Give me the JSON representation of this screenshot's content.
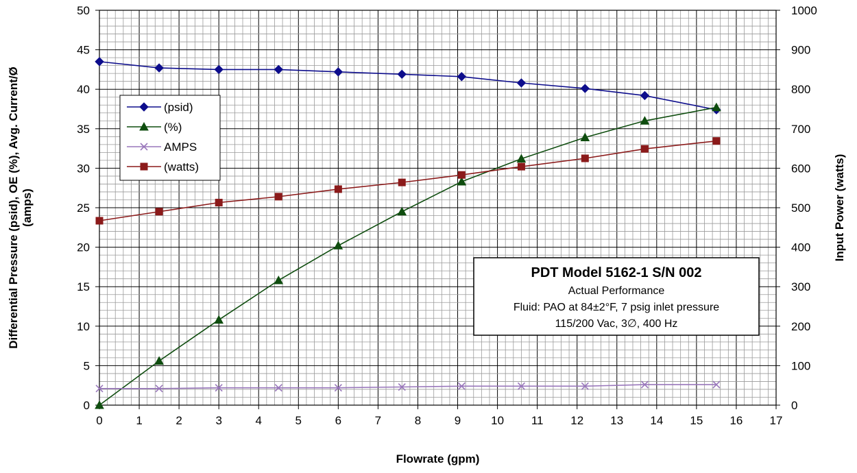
{
  "chart_data": {
    "type": "line",
    "xlabel": "Flowrate (gpm)",
    "ylabel_lines": [
      "Differential Pressure (psid), OE (%), Avg. Current/Ø",
      "(amps)"
    ],
    "y2label": "Input Power (watts)",
    "xlim": [
      0,
      17
    ],
    "ylim": [
      0,
      50
    ],
    "y2lim": [
      0,
      1000
    ],
    "x_ticks": [
      "0",
      "1",
      "2",
      "3",
      "4",
      "5",
      "6",
      "7",
      "8",
      "9",
      "10",
      "11",
      "12",
      "13",
      "14",
      "15",
      "16",
      "17"
    ],
    "y_ticks": [
      "0",
      "5",
      "10",
      "15",
      "20",
      "25",
      "30",
      "35",
      "40",
      "45",
      "50"
    ],
    "y2_ticks": [
      "0",
      "100",
      "200",
      "300",
      "400",
      "500",
      "600",
      "700",
      "800",
      "900",
      "1000"
    ],
    "grid": "major and minor",
    "legend_position": "upper-left",
    "series": [
      {
        "name": "(psid)",
        "axis": "left",
        "marker": "diamond",
        "color": "#0d0d8c",
        "x": [
          0,
          1.5,
          3,
          4.5,
          6,
          7.6,
          9.1,
          10.6,
          12.2,
          13.7,
          15.5
        ],
        "y": [
          43.5,
          42.7,
          42.5,
          42.5,
          42.2,
          41.9,
          41.6,
          40.8,
          40.1,
          39.2,
          37.4
        ]
      },
      {
        "name": "(%)",
        "axis": "left",
        "marker": "triangle",
        "color": "#0f4d0f",
        "x": [
          0,
          1.5,
          3,
          4.5,
          6,
          7.6,
          9.1,
          10.6,
          12.2,
          13.7,
          15.5
        ],
        "y": [
          0,
          5.6,
          10.8,
          15.8,
          20.2,
          24.5,
          28.3,
          31.2,
          33.9,
          36.0,
          37.7
        ]
      },
      {
        "name": "AMPS",
        "axis": "left",
        "marker": "x",
        "color": "#9977bb",
        "x": [
          0,
          1.5,
          3,
          4.5,
          6,
          7.6,
          9.1,
          10.6,
          12.2,
          13.7,
          15.5
        ],
        "y": [
          2.1,
          2.1,
          2.2,
          2.2,
          2.2,
          2.3,
          2.4,
          2.4,
          2.4,
          2.6,
          2.6
        ]
      },
      {
        "name": "(watts)",
        "axis": "right",
        "marker": "square",
        "color": "#8b1a1a",
        "x": [
          0,
          1.5,
          3,
          4.5,
          6,
          7.6,
          9.1,
          10.6,
          12.2,
          13.7,
          15.5
        ],
        "y": [
          467,
          490,
          513,
          528,
          547,
          564,
          583,
          604,
          625,
          649,
          669
        ]
      }
    ],
    "annotation": {
      "title": "PDT Model  5162-1  S/N 002",
      "lines": [
        "Actual Performance",
        "Fluid: PAO at 84±2°F, 7 psig inlet pressure",
        "115/200 Vac, 3∅, 400 Hz"
      ]
    }
  }
}
